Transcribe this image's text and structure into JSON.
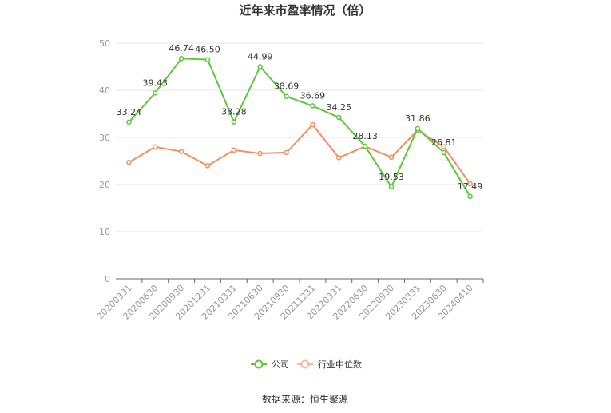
{
  "chart_data": {
    "type": "line",
    "title": "近年来市盈率情况（倍）",
    "categories": [
      "20200331",
      "20200630",
      "20200930",
      "20201231",
      "20210331",
      "20210630",
      "20210930",
      "20211231",
      "20220331",
      "20220630",
      "20220930",
      "20230331",
      "20230630",
      "20240410"
    ],
    "ylim": [
      0,
      50
    ],
    "yticks": [
      0,
      10,
      20,
      30,
      40,
      50
    ],
    "grid": true,
    "legend_position": "bottom",
    "series": [
      {
        "name": "公司",
        "color": "#5cc83a",
        "values": [
          33.24,
          39.43,
          46.74,
          46.5,
          33.28,
          44.99,
          38.69,
          36.69,
          34.25,
          28.13,
          19.53,
          31.86,
          26.81,
          17.49
        ],
        "labels": [
          "33.24",
          "39.43",
          "46.74",
          "46.50",
          "33.28",
          "44.99",
          "38.69",
          "36.69",
          "34.25",
          "28.13",
          "19.53",
          "31.86",
          "26.81",
          "17.49"
        ]
      },
      {
        "name": "行业中位数",
        "color": "#f28e62",
        "values": [
          24.7,
          28.0,
          27.0,
          24.0,
          27.3,
          26.6,
          26.8,
          32.7,
          25.7,
          28.1,
          25.8,
          31.5,
          28.0,
          20.2
        ]
      }
    ],
    "source": "数据来源：恒生聚源"
  }
}
